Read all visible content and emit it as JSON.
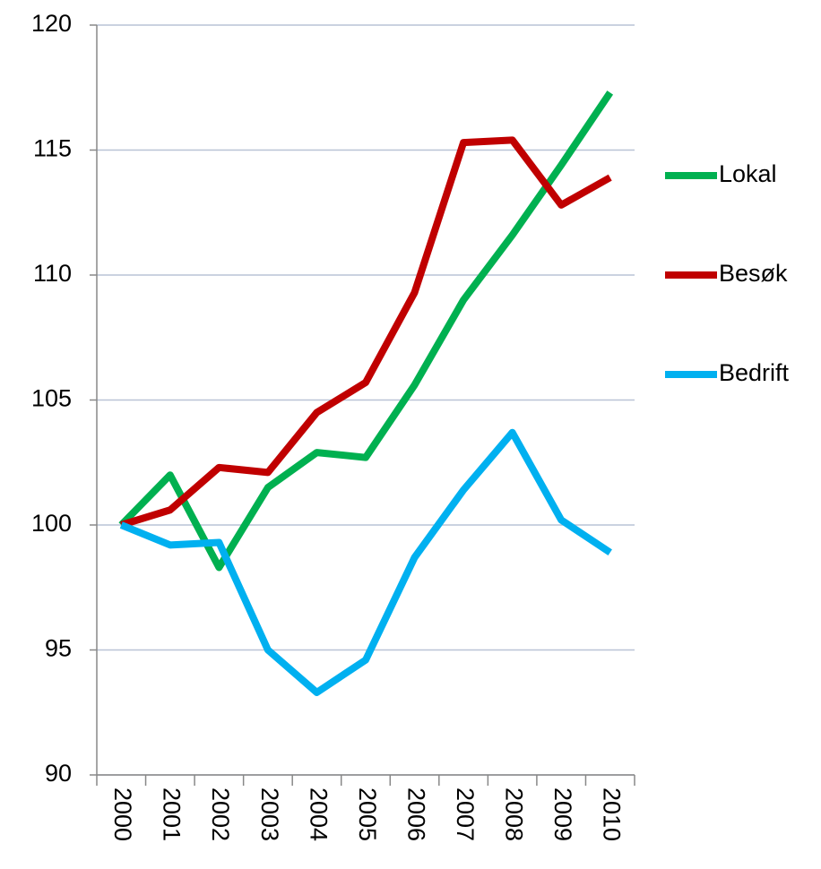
{
  "chart_data": {
    "type": "line",
    "categories": [
      "2000",
      "2001",
      "2002",
      "2003",
      "2004",
      "2005",
      "2006",
      "2007",
      "2008",
      "2009",
      "2010"
    ],
    "series": [
      {
        "name": "Lokal",
        "color": "#00b050",
        "values": [
          100,
          102.0,
          98.3,
          101.5,
          102.9,
          102.7,
          105.6,
          109.0,
          111.6,
          114.4,
          117.3
        ]
      },
      {
        "name": "Besøk",
        "color": "#c00000",
        "values": [
          100,
          100.6,
          102.3,
          102.1,
          104.5,
          105.7,
          109.3,
          115.3,
          115.4,
          112.8,
          113.9
        ]
      },
      {
        "name": "Bedrift",
        "color": "#00b0f0",
        "values": [
          100,
          99.2,
          99.3,
          95.0,
          93.3,
          94.6,
          98.7,
          101.4,
          103.7,
          100.2,
          98.9
        ]
      }
    ],
    "ylim": [
      90,
      120
    ],
    "yticks": [
      90,
      95,
      100,
      105,
      110,
      115,
      120
    ],
    "grid": true,
    "legend": "right"
  }
}
